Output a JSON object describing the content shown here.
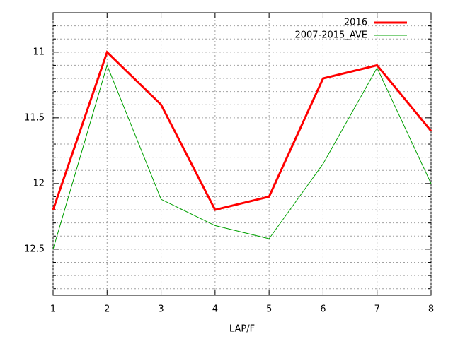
{
  "chart_data": {
    "type": "line",
    "xlabel": "LAP/F",
    "x": [
      1,
      2,
      3,
      4,
      5,
      6,
      7,
      8
    ],
    "series": [
      {
        "name": "2016",
        "color": "#ff0000",
        "width": 3,
        "values": [
          12.2,
          11.0,
          11.4,
          12.2,
          12.1,
          11.2,
          11.1,
          11.6
        ]
      },
      {
        "name": "2007-2015_AVE",
        "color": "#00a000",
        "width": 1,
        "values": [
          12.5,
          11.1,
          12.12,
          12.32,
          12.42,
          11.85,
          11.12,
          12.0
        ]
      }
    ],
    "xlim": [
      1,
      8
    ],
    "xticks": [
      1,
      2,
      3,
      4,
      5,
      6,
      7,
      8
    ],
    "ylim": [
      10.7,
      12.85
    ],
    "yticks": [
      11,
      11.5,
      12,
      12.5
    ],
    "minor_yticks": [
      10.8,
      10.9,
      11.1,
      11.2,
      11.3,
      11.4,
      11.6,
      11.7,
      11.8,
      11.9,
      12.1,
      12.2,
      12.3,
      12.4,
      12.6,
      12.7,
      12.8
    ],
    "y_reversed": true,
    "grid": true,
    "legend": "top-right"
  }
}
